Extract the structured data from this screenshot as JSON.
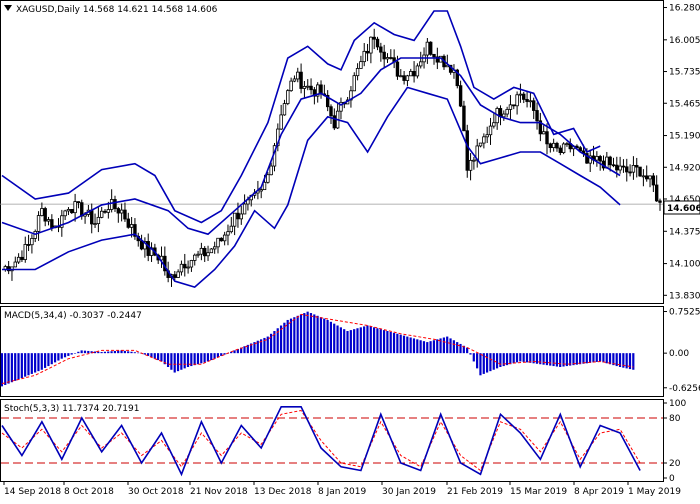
{
  "colors": {
    "background": "#ffffff",
    "candle": "#000000",
    "bollinger": "#0000b8",
    "macd_hist": "#0000cc",
    "macd_signal": "#ff0000",
    "stoch_main": "#0000b8",
    "stoch_signal": "#ff0000",
    "level_line": "#cc0000",
    "price_label_bg": "#ffffff"
  },
  "chart_data": [
    {
      "type": "candlestick",
      "panel": "price",
      "title": "XAGUSD,Daily  14.568 14.621 14.568 14.606",
      "symbol_label": "XAGUSD,Daily",
      "ohlc_label": "14.568 14.621 14.568 14.606",
      "ylim": [
        13.79,
        16.31
      ],
      "yticks": [
        "16.280",
        "16.005",
        "15.735",
        "15.465",
        "15.190",
        "14.920",
        "14.650",
        "14.375",
        "14.100",
        "13.830"
      ],
      "current_price_label": "14.606",
      "current_price": 14.606,
      "bars": 160,
      "close_path": [
        [
          0,
          14.05
        ],
        [
          4,
          14.12
        ],
        [
          8,
          14.25
        ],
        [
          12,
          14.55
        ],
        [
          16,
          14.4
        ],
        [
          20,
          14.6
        ],
        [
          24,
          14.55
        ],
        [
          28,
          14.45
        ],
        [
          32,
          14.6
        ],
        [
          36,
          14.55
        ],
        [
          40,
          14.35
        ],
        [
          44,
          14.2
        ],
        [
          48,
          14.15
        ],
        [
          50,
          13.95
        ],
        [
          54,
          14.1
        ],
        [
          58,
          14.15
        ],
        [
          62,
          14.2
        ],
        [
          66,
          14.3
        ],
        [
          70,
          14.5
        ],
        [
          74,
          14.6
        ],
        [
          78,
          14.7
        ],
        [
          80,
          14.85
        ],
        [
          84,
          15.4
        ],
        [
          88,
          15.7
        ],
        [
          92,
          15.6
        ],
        [
          96,
          15.55
        ],
        [
          100,
          15.3
        ],
        [
          104,
          15.55
        ],
        [
          108,
          15.8
        ],
        [
          112,
          16.05
        ],
        [
          116,
          15.85
        ],
        [
          120,
          15.7
        ],
        [
          124,
          15.75
        ],
        [
          128,
          15.95
        ],
        [
          132,
          15.85
        ],
        [
          136,
          15.75
        ],
        [
          138,
          15.5
        ],
        [
          140,
          14.9
        ],
        [
          144,
          15.1
        ],
        [
          148,
          15.35
        ],
        [
          152,
          15.45
        ],
        [
          156,
          15.55
        ],
        [
          160,
          15.4
        ]
      ],
      "close_path_2": [
        [
          160,
          15.4
        ],
        [
          164,
          15.1
        ],
        [
          168,
          15.05
        ],
        [
          172,
          15.1
        ],
        [
          176,
          14.95
        ],
        [
          180,
          14.98
        ],
        [
          184,
          14.92
        ],
        [
          188,
          14.88
        ],
        [
          192,
          14.9
        ],
        [
          196,
          14.75
        ],
        [
          198,
          14.6
        ]
      ],
      "bollinger_upper": [
        [
          0,
          14.85
        ],
        [
          10,
          14.65
        ],
        [
          20,
          14.7
        ],
        [
          30,
          14.9
        ],
        [
          40,
          14.95
        ],
        [
          46,
          14.85
        ],
        [
          52,
          14.55
        ],
        [
          60,
          14.45
        ],
        [
          66,
          14.55
        ],
        [
          72,
          14.85
        ],
        [
          80,
          15.3
        ],
        [
          86,
          15.85
        ],
        [
          92,
          15.95
        ],
        [
          98,
          15.8
        ],
        [
          102,
          15.75
        ],
        [
          106,
          16.0
        ],
        [
          112,
          16.15
        ],
        [
          118,
          16.05
        ],
        [
          124,
          16.0
        ],
        [
          130,
          16.25
        ],
        [
          134,
          16.25
        ],
        [
          138,
          15.95
        ],
        [
          142,
          15.6
        ],
        [
          148,
          15.5
        ],
        [
          154,
          15.6
        ],
        [
          160,
          15.55
        ],
        [
          166,
          15.2
        ],
        [
          172,
          15.25
        ],
        [
          176,
          15.05
        ],
        [
          180,
          15.1
        ]
      ],
      "bollinger_middle": [
        [
          0,
          14.45
        ],
        [
          10,
          14.35
        ],
        [
          20,
          14.45
        ],
        [
          30,
          14.6
        ],
        [
          40,
          14.65
        ],
        [
          50,
          14.55
        ],
        [
          56,
          14.4
        ],
        [
          62,
          14.35
        ],
        [
          70,
          14.55
        ],
        [
          78,
          14.75
        ],
        [
          84,
          15.2
        ],
        [
          90,
          15.5
        ],
        [
          96,
          15.55
        ],
        [
          102,
          15.45
        ],
        [
          108,
          15.55
        ],
        [
          114,
          15.75
        ],
        [
          120,
          15.85
        ],
        [
          126,
          15.85
        ],
        [
          132,
          15.85
        ],
        [
          138,
          15.7
        ],
        [
          144,
          15.45
        ],
        [
          150,
          15.35
        ],
        [
          156,
          15.3
        ],
        [
          162,
          15.3
        ],
        [
          168,
          15.2
        ],
        [
          174,
          15.05
        ],
        [
          180,
          14.95
        ],
        [
          186,
          14.85
        ]
      ],
      "bollinger_lower": [
        [
          0,
          14.05
        ],
        [
          10,
          14.05
        ],
        [
          20,
          14.2
        ],
        [
          30,
          14.3
        ],
        [
          40,
          14.35
        ],
        [
          46,
          14.2
        ],
        [
          52,
          13.95
        ],
        [
          58,
          13.9
        ],
        [
          64,
          14.05
        ],
        [
          70,
          14.25
        ],
        [
          76,
          14.55
        ],
        [
          82,
          14.4
        ],
        [
          86,
          14.6
        ],
        [
          92,
          15.15
        ],
        [
          98,
          15.35
        ],
        [
          104,
          15.3
        ],
        [
          110,
          15.05
        ],
        [
          116,
          15.35
        ],
        [
          122,
          15.6
        ],
        [
          128,
          15.55
        ],
        [
          134,
          15.5
        ],
        [
          140,
          15.1
        ],
        [
          144,
          14.95
        ],
        [
          150,
          15.0
        ],
        [
          156,
          15.05
        ],
        [
          162,
          15.05
        ],
        [
          168,
          14.95
        ],
        [
          174,
          14.85
        ],
        [
          180,
          14.75
        ],
        [
          186,
          14.6
        ]
      ]
    },
    {
      "type": "bar",
      "panel": "macd",
      "title": "MACD(5,34,4) -0.3037 -0.2447",
      "label": "MACD(5,34,4) -0.3037 -0.2447",
      "ylim": [
        -0.72,
        0.78
      ],
      "yticks": [
        "0.7525",
        "0.00",
        "-0.6256"
      ],
      "histogram": [
        [
          0,
          -0.6
        ],
        [
          6,
          -0.45
        ],
        [
          12,
          -0.3
        ],
        [
          18,
          -0.1
        ],
        [
          24,
          0.05
        ],
        [
          30,
          0.02
        ],
        [
          36,
          0.05
        ],
        [
          42,
          0.0
        ],
        [
          48,
          -0.15
        ],
        [
          52,
          -0.35
        ],
        [
          56,
          -0.25
        ],
        [
          62,
          -0.15
        ],
        [
          68,
          0.0
        ],
        [
          74,
          0.15
        ],
        [
          80,
          0.3
        ],
        [
          86,
          0.6
        ],
        [
          92,
          0.75
        ],
        [
          98,
          0.6
        ],
        [
          104,
          0.4
        ],
        [
          110,
          0.5
        ],
        [
          116,
          0.4
        ],
        [
          122,
          0.3
        ],
        [
          128,
          0.2
        ],
        [
          134,
          0.3
        ],
        [
          140,
          0.1
        ],
        [
          144,
          -0.4
        ],
        [
          150,
          -0.25
        ],
        [
          156,
          -0.15
        ],
        [
          162,
          -0.2
        ],
        [
          168,
          -0.25
        ],
        [
          174,
          -0.2
        ],
        [
          180,
          -0.15
        ],
        [
          186,
          -0.25
        ],
        [
          190,
          -0.3
        ]
      ],
      "signal": [
        [
          0,
          -0.55
        ],
        [
          10,
          -0.4
        ],
        [
          20,
          -0.1
        ],
        [
          30,
          0.05
        ],
        [
          40,
          0.05
        ],
        [
          50,
          -0.2
        ],
        [
          60,
          -0.2
        ],
        [
          70,
          0.05
        ],
        [
          80,
          0.25
        ],
        [
          90,
          0.7
        ],
        [
          100,
          0.6
        ],
        [
          110,
          0.5
        ],
        [
          120,
          0.35
        ],
        [
          130,
          0.25
        ],
        [
          140,
          0.1
        ],
        [
          150,
          -0.2
        ],
        [
          160,
          -0.15
        ],
        [
          170,
          -0.2
        ],
        [
          180,
          -0.15
        ],
        [
          190,
          -0.25
        ]
      ]
    },
    {
      "type": "line",
      "panel": "stochastic",
      "title": "Stoch(5,3,3) 11.7374 20.7191",
      "label": "Stoch(5,3,3) 11.7374 20.7191",
      "ylim": [
        0,
        100
      ],
      "yticks": [
        "100",
        "80",
        "20",
        "0"
      ],
      "levels": [
        80,
        20
      ],
      "main": [
        [
          0,
          70
        ],
        [
          6,
          30
        ],
        [
          12,
          75
        ],
        [
          18,
          25
        ],
        [
          24,
          80
        ],
        [
          30,
          35
        ],
        [
          36,
          70
        ],
        [
          42,
          20
        ],
        [
          48,
          60
        ],
        [
          54,
          5
        ],
        [
          60,
          75
        ],
        [
          66,
          20
        ],
        [
          72,
          70
        ],
        [
          78,
          40
        ],
        [
          84,
          95
        ],
        [
          90,
          95
        ],
        [
          96,
          40
        ],
        [
          102,
          15
        ],
        [
          108,
          10
        ],
        [
          114,
          85
        ],
        [
          120,
          20
        ],
        [
          126,
          10
        ],
        [
          132,
          85
        ],
        [
          138,
          20
        ],
        [
          144,
          5
        ],
        [
          150,
          85
        ],
        [
          156,
          60
        ],
        [
          162,
          25
        ],
        [
          168,
          85
        ],
        [
          174,
          15
        ],
        [
          180,
          70
        ],
        [
          186,
          60
        ],
        [
          192,
          10
        ]
      ],
      "signal": [
        [
          0,
          60
        ],
        [
          6,
          40
        ],
        [
          12,
          65
        ],
        [
          18,
          35
        ],
        [
          24,
          70
        ],
        [
          30,
          40
        ],
        [
          36,
          60
        ],
        [
          42,
          30
        ],
        [
          48,
          50
        ],
        [
          54,
          15
        ],
        [
          60,
          60
        ],
        [
          66,
          30
        ],
        [
          72,
          60
        ],
        [
          78,
          45
        ],
        [
          84,
          85
        ],
        [
          90,
          90
        ],
        [
          96,
          50
        ],
        [
          102,
          20
        ],
        [
          108,
          15
        ],
        [
          114,
          75
        ],
        [
          120,
          30
        ],
        [
          126,
          15
        ],
        [
          132,
          75
        ],
        [
          138,
          30
        ],
        [
          144,
          10
        ],
        [
          150,
          75
        ],
        [
          156,
          65
        ],
        [
          162,
          35
        ],
        [
          168,
          75
        ],
        [
          174,
          25
        ],
        [
          180,
          60
        ],
        [
          186,
          65
        ],
        [
          192,
          20
        ]
      ]
    }
  ],
  "x_axis_labels": [
    "14 Sep 2018",
    "8 Oct 2018",
    "30 Oct 2018",
    "21 Nov 2018",
    "13 Dec 2018",
    "8 Jan 2019",
    "30 Jan 2019",
    "21 Feb 2019",
    "15 Mar 2019",
    "8 Apr 2019",
    "1 May 2019"
  ]
}
